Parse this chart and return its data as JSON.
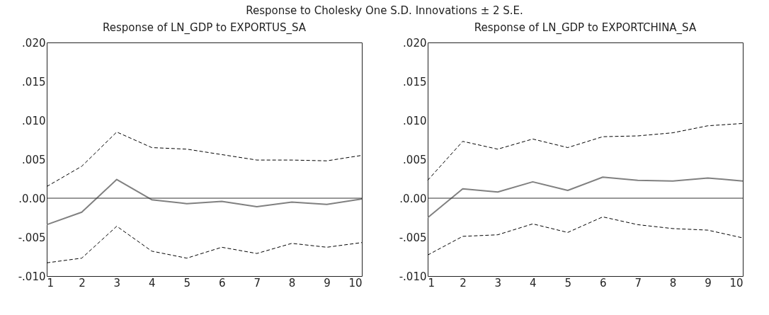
{
  "chart_data": [
    {
      "type": "line",
      "title": "Response of LN_GDP to EXPORTUS_SA",
      "annotations": [
        "Response to Cholesky One S.D. Innovations ± 2 S.E."
      ],
      "x": [
        1,
        2,
        3,
        4,
        5,
        6,
        7,
        8,
        9,
        10
      ],
      "series": [
        {
          "color": "#808080",
          "line_style": "solid",
          "values": [
            -0.0034,
            -0.0018,
            0.0024,
            -0.0002,
            -0.0007,
            -0.0004,
            -0.0011,
            -0.0005,
            -0.0008,
            -0.0001
          ]
        },
        {
          "color": "#000000",
          "line_style": "dashed",
          "values": [
            0.0015,
            0.0041,
            0.0085,
            0.0065,
            0.0063,
            0.0056,
            0.0049,
            0.0049,
            0.0048,
            0.0055
          ]
        },
        {
          "color": "#000000",
          "line_style": "dashed",
          "values": [
            -0.0083,
            -0.0077,
            -0.0036,
            -0.0068,
            -0.0077,
            -0.0063,
            -0.0071,
            -0.0058,
            -0.0063,
            -0.0057
          ]
        }
      ],
      "xlim": [
        1,
        10
      ],
      "xticks": [
        1,
        2,
        3,
        4,
        5,
        6,
        7,
        8,
        9,
        10
      ],
      "ylim": [
        -0.01,
        0.02
      ],
      "yticks": [
        {
          "value": -0.01,
          "label": "-.010"
        },
        {
          "value": -0.005,
          "label": "-.005"
        },
        {
          "value": 0,
          "label": ".0.00"
        },
        {
          "value": 0.005,
          "label": ".005"
        },
        {
          "value": 0.01,
          "label": ".010"
        },
        {
          "value": 0.015,
          "label": ".015"
        },
        {
          "value": 0.02,
          "label": ".020"
        }
      ],
      "ref_lines": [
        {
          "axis": "y",
          "value": 0,
          "color": "#333333"
        }
      ]
    },
    {
      "type": "line",
      "title": "Response of LN_GDP to EXPORTCHINA_SA",
      "x": [
        1,
        2,
        3,
        4,
        5,
        6,
        7,
        8,
        9,
        10
      ],
      "series": [
        {
          "color": "#808080",
          "line_style": "solid",
          "values": [
            -0.0025,
            0.0012,
            0.0008,
            0.0021,
            0.001,
            0.0027,
            0.0023,
            0.0022,
            0.0026,
            0.0022
          ]
        },
        {
          "color": "#000000",
          "line_style": "dashed",
          "values": [
            0.0023,
            0.0073,
            0.0063,
            0.0076,
            0.0065,
            0.0079,
            0.008,
            0.0084,
            0.0093,
            0.0096
          ]
        },
        {
          "color": "#000000",
          "line_style": "dashed",
          "values": [
            -0.0073,
            -0.0049,
            -0.0047,
            -0.0033,
            -0.0044,
            -0.0024,
            -0.0034,
            -0.0039,
            -0.0041,
            -0.0051
          ]
        }
      ],
      "xlim": [
        1,
        10
      ],
      "xticks": [
        1,
        2,
        3,
        4,
        5,
        6,
        7,
        8,
        9,
        10
      ],
      "ylim": [
        -0.01,
        0.02
      ],
      "yticks": [
        {
          "value": -0.01,
          "label": "-.010"
        },
        {
          "value": -0.005,
          "label": "-.005"
        },
        {
          "value": 0,
          "label": ".0.00"
        },
        {
          "value": 0.005,
          "label": ".005"
        },
        {
          "value": 0.01,
          "label": ".010"
        },
        {
          "value": 0.015,
          "label": ".015"
        },
        {
          "value": 0.02,
          "label": ".020"
        }
      ],
      "ref_lines": [
        {
          "axis": "y",
          "value": 0,
          "color": "#333333"
        }
      ]
    }
  ]
}
